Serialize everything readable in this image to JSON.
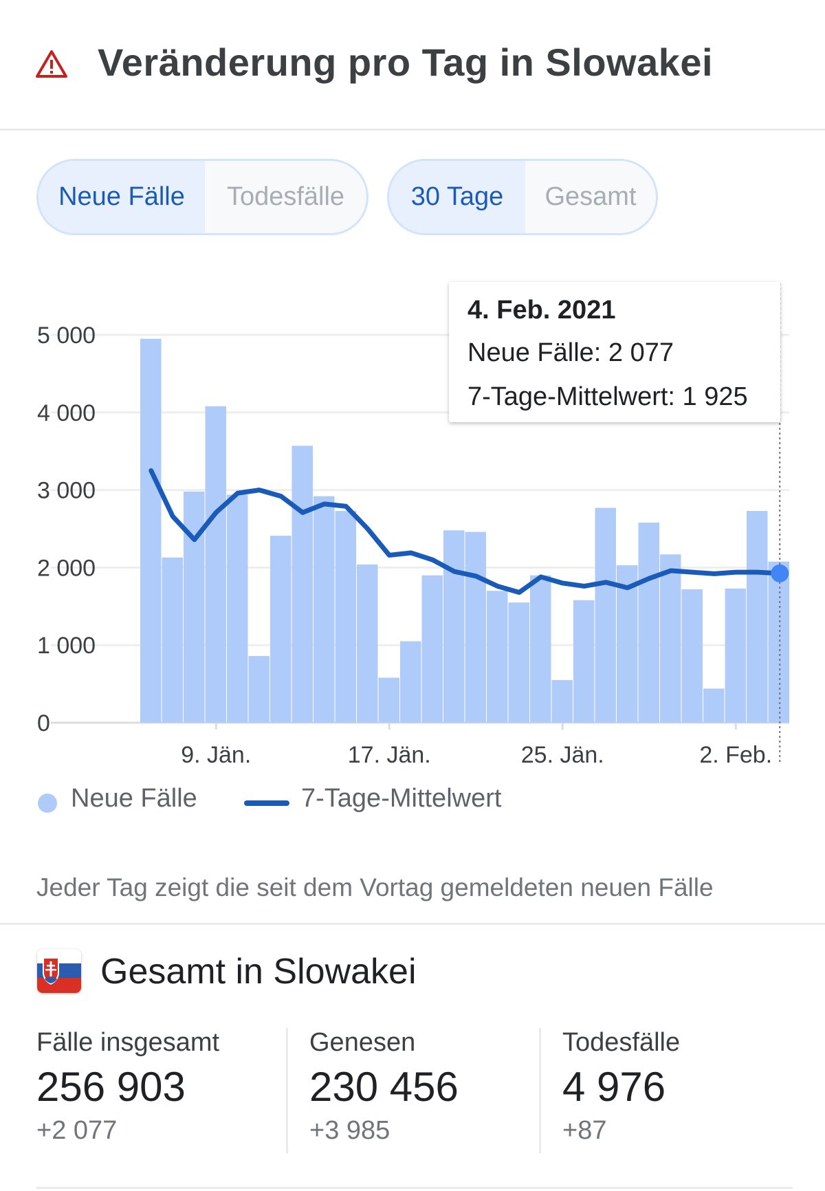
{
  "header": {
    "title": "Veränderung pro Tag in Slowakei",
    "icon": "warning-triangle-icon",
    "icon_color": "#c5221f"
  },
  "toggles": {
    "metric": {
      "options": [
        "Neue Fälle",
        "Todesfälle"
      ],
      "selected": "Neue Fälle"
    },
    "range": {
      "options": [
        "30 Tage",
        "Gesamt"
      ],
      "selected": "30 Tage"
    }
  },
  "tooltip": {
    "date": "4. Feb. 2021",
    "new_cases_line": "Neue Fälle: 2 077",
    "avg_line": "7-Tage-Mittelwert: 1 925"
  },
  "legend": {
    "bars_label": "Neue Fälle",
    "line_label": "7-Tage-Mittelwert",
    "bar_color": "#aecbfa",
    "line_color": "#1a5bb9"
  },
  "chart_data": {
    "type": "bar",
    "x": [
      "6. Jän.",
      "7. Jän.",
      "8. Jän.",
      "9. Jän.",
      "10. Jän.",
      "11. Jän.",
      "12. Jän.",
      "13. Jän.",
      "14. Jän.",
      "15. Jän.",
      "16. Jän.",
      "17. Jän.",
      "18. Jän.",
      "19. Jän.",
      "20. Jän.",
      "21. Jän.",
      "22. Jän.",
      "23. Jän.",
      "24. Jän.",
      "25. Jän.",
      "26. Jän.",
      "27. Jän.",
      "28. Jän.",
      "29. Jän.",
      "30. Jän.",
      "31. Jän.",
      "1. Feb.",
      "2. Feb.",
      "3. Feb.",
      "4. Feb."
    ],
    "x_ticks": [
      "9. Jän.",
      "17. Jän.",
      "25. Jän.",
      "2. Feb."
    ],
    "series": [
      {
        "name": "Neue Fälle",
        "type": "bar",
        "values": [
          4950,
          2130,
          2980,
          4080,
          2940,
          860,
          2410,
          3570,
          2920,
          2730,
          2040,
          580,
          1050,
          1900,
          2480,
          2460,
          1700,
          1550,
          1900,
          550,
          1580,
          2770,
          2030,
          2580,
          2170,
          1720,
          440,
          1730,
          2730,
          2077
        ]
      },
      {
        "name": "7-Tage-Mittelwert",
        "type": "line",
        "values": [
          3250,
          2660,
          2360,
          2710,
          2960,
          3000,
          2920,
          2710,
          2820,
          2790,
          2500,
          2160,
          2190,
          2100,
          1950,
          1890,
          1760,
          1680,
          1880,
          1800,
          1760,
          1810,
          1740,
          1860,
          1960,
          1940,
          1920,
          1940,
          1940,
          1925
        ]
      }
    ],
    "yticks": [
      0,
      1000,
      2000,
      3000,
      4000,
      5000
    ],
    "ytick_labels": [
      "0",
      "1 000",
      "2 000",
      "3 000",
      "4 000",
      "5 000"
    ],
    "ylim": [
      0,
      5000
    ],
    "grid": true,
    "highlighted_index": 29
  },
  "note": "Jeder Tag zeigt die seit dem Vortag gemeldeten neuen Fälle",
  "totals": {
    "title": "Gesamt in Slowakei",
    "flag_icon": "slovakia-flag-icon",
    "stats": [
      {
        "label": "Fälle insgesamt",
        "value": "256 903",
        "delta": "+2 077"
      },
      {
        "label": "Genesen",
        "value": "230 456",
        "delta": "+3 985"
      },
      {
        "label": "Todesfälle",
        "value": "4 976",
        "delta": "+87"
      }
    ]
  }
}
